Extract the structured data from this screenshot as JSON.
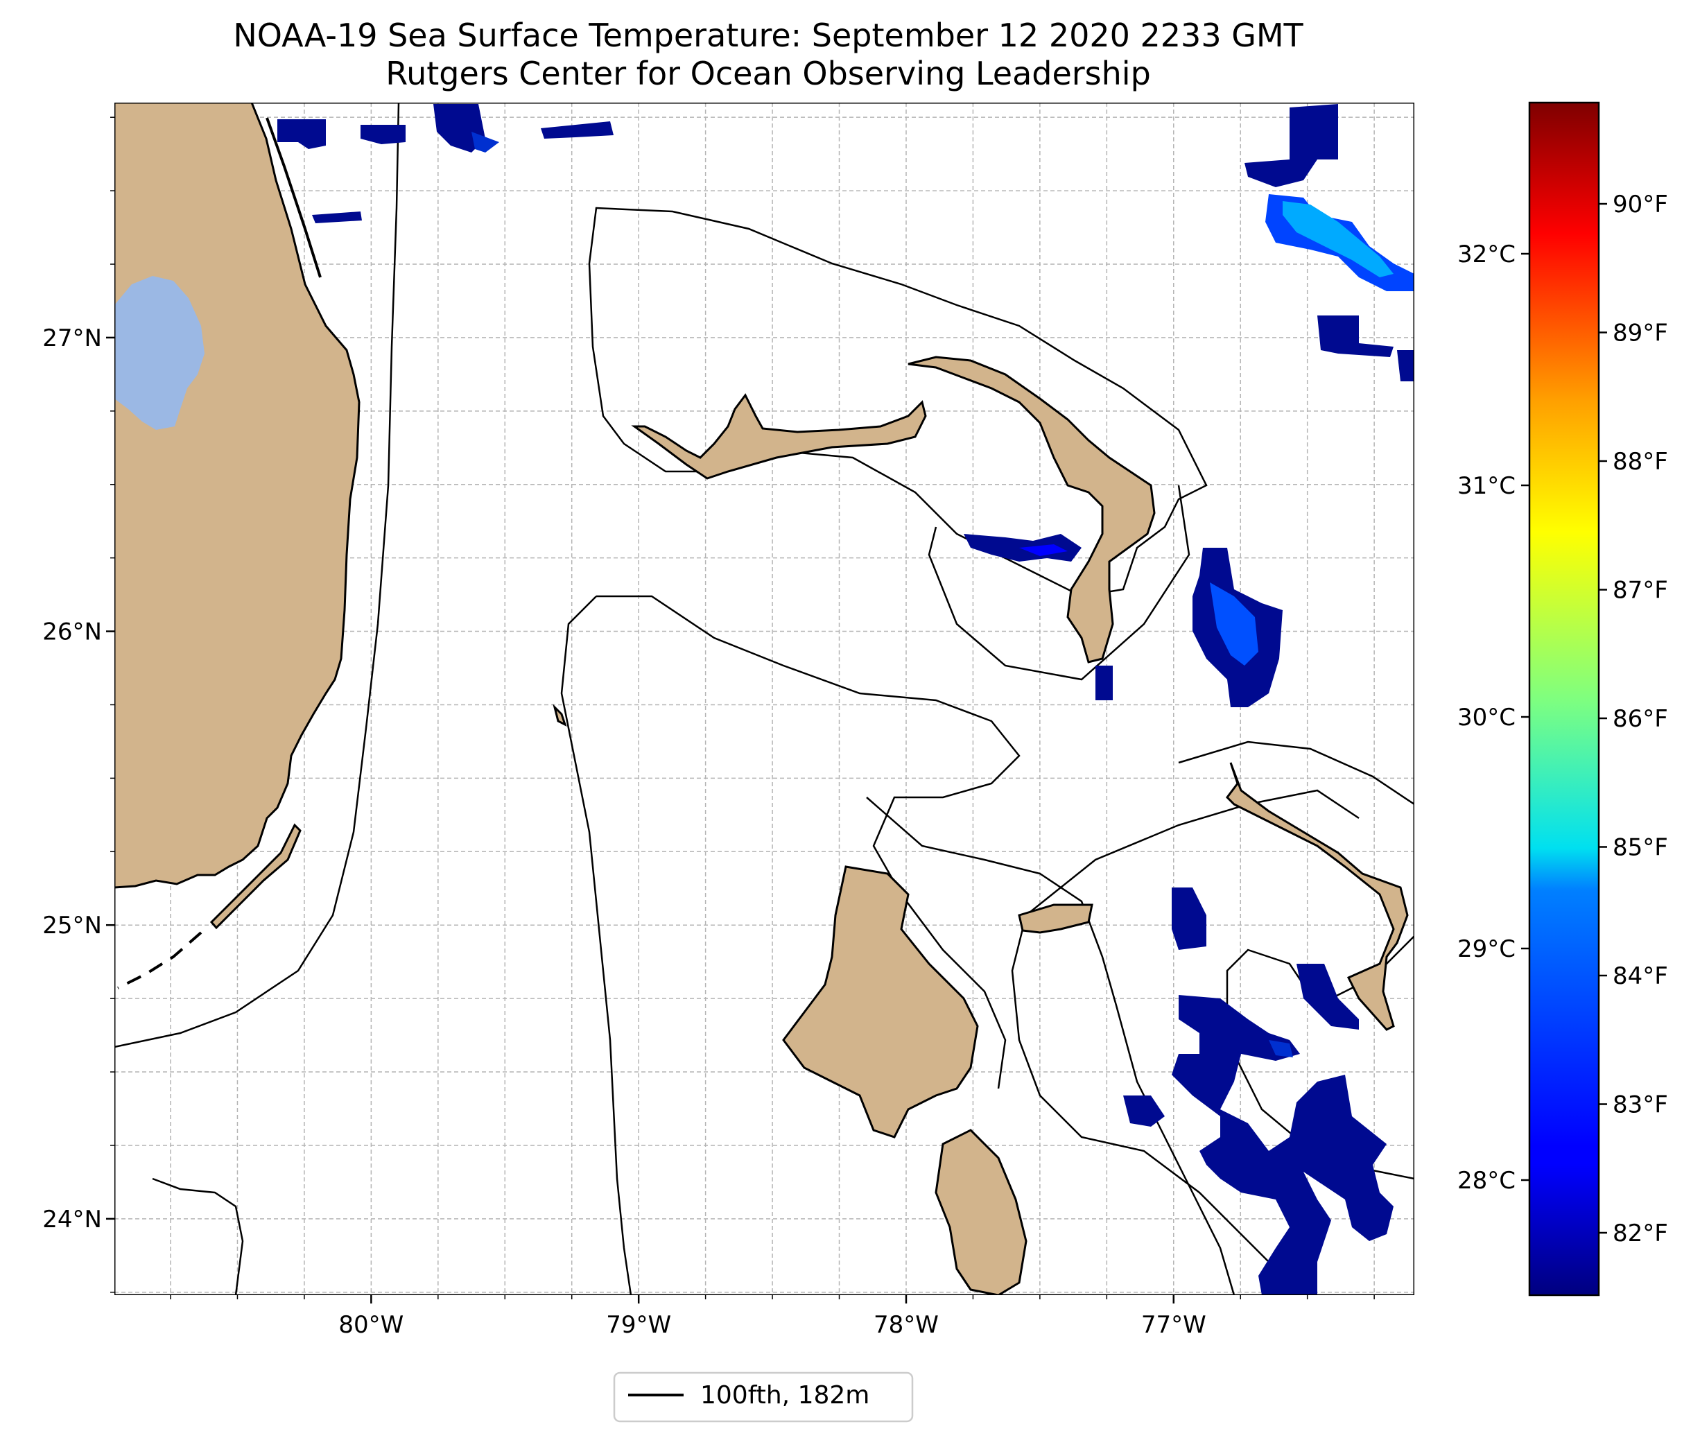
{
  "title": {
    "line1": "NOAA-19 Sea Surface Temperature: September 12 2020 2233 GMT",
    "line2": "Rutgers Center for Ocean Observing Leadership"
  },
  "map": {
    "extent": {
      "lon_min": -80.96,
      "lon_max": -76.1,
      "lat_min": 23.74,
      "lat_max": 27.8
    },
    "lat_ticks": [
      {
        "value": 27,
        "label": "27°N"
      },
      {
        "value": 26,
        "label": "26°N"
      },
      {
        "value": 25,
        "label": "25°N"
      },
      {
        "value": 24,
        "label": "24°N"
      }
    ],
    "lon_ticks": [
      {
        "value": -80,
        "label": "80°W"
      },
      {
        "value": -79,
        "label": "79°W"
      },
      {
        "value": -78,
        "label": "78°W"
      },
      {
        "value": -77,
        "label": "77°W"
      }
    ],
    "gridlines": true,
    "colors": {
      "land": "#d2b48c",
      "lake": "#9bb8e4",
      "ocean": "#ffffff",
      "grid": "#b4b4b4",
      "isobath": "#000000"
    }
  },
  "colorbar": {
    "colormap": "jet",
    "f_ticks": [
      "82°F",
      "83°F",
      "84°F",
      "85°F",
      "86°F",
      "87°F",
      "88°F",
      "89°F",
      "90°F"
    ],
    "c_ticks": [
      "28°C",
      "29°C",
      "30°C",
      "31°C",
      "32°C"
    ]
  },
  "legend": {
    "entries": [
      {
        "label": "100fth, 182m",
        "color": "#000000"
      }
    ],
    "placement": "bottom-center"
  }
}
